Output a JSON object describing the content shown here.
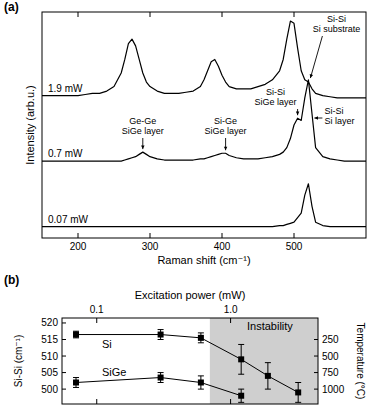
{
  "chart_data": [
    {
      "type": "line",
      "panel": "(a)",
      "xlabel": "Raman shift (cm⁻¹)",
      "ylabel": "Intensity (arb.u.)",
      "xlim": [
        150,
        600
      ],
      "xticks": [
        200,
        300,
        400,
        500
      ],
      "ylim": [
        0,
        100
      ],
      "tick_labels": "x",
      "grid": false,
      "line_style": "solid",
      "x": [
        150,
        160,
        170,
        180,
        190,
        200,
        210,
        220,
        230,
        240,
        250,
        260,
        265,
        270,
        275,
        280,
        285,
        290,
        295,
        300,
        310,
        320,
        330,
        340,
        350,
        360,
        370,
        375,
        380,
        385,
        390,
        395,
        400,
        405,
        410,
        420,
        430,
        440,
        450,
        460,
        470,
        480,
        485,
        490,
        495,
        500,
        505,
        510,
        515,
        520,
        525,
        530,
        540,
        550,
        560,
        570,
        580,
        590,
        600
      ],
      "series": [
        {
          "name": "1.9 mW",
          "color": "#000000",
          "values": [
            63,
            63,
            63,
            63,
            63,
            63,
            63.5,
            64,
            64,
            65,
            67,
            73,
            79,
            86,
            88,
            85,
            79,
            73,
            69,
            67,
            65,
            64,
            64,
            64,
            64.5,
            65,
            67,
            70,
            74,
            78,
            79,
            76,
            72,
            69,
            67,
            66,
            66,
            66,
            67,
            68,
            70,
            74,
            79,
            88,
            96,
            95,
            84,
            74,
            70,
            69,
            66,
            64,
            63,
            62.5,
            62,
            62,
            62,
            62,
            62
          ]
        },
        {
          "name": "0.7 mW",
          "color": "#000000",
          "values": [
            34,
            34,
            34,
            34,
            34,
            34,
            34,
            34,
            34,
            34,
            34,
            34,
            34.5,
            35,
            35.5,
            36,
            37,
            38,
            37,
            36,
            35,
            34.5,
            34.5,
            34.5,
            34.5,
            34.5,
            35,
            35,
            35.5,
            36,
            36.5,
            37,
            37.5,
            37.5,
            36.5,
            35.5,
            35,
            35,
            35,
            35.5,
            36,
            37,
            38,
            40,
            44,
            50,
            53,
            52,
            62,
            70,
            55,
            40,
            36,
            35,
            34.5,
            34,
            34,
            34,
            34
          ]
        },
        {
          "name": "0.07 mW",
          "color": "#000000",
          "values": [
            5,
            5,
            5,
            5,
            5,
            5,
            5,
            5,
            5,
            5,
            5,
            5,
            5,
            5,
            5,
            5,
            5,
            5,
            5,
            5,
            5,
            5,
            5,
            5,
            5,
            5,
            5,
            5,
            5,
            5,
            5,
            5,
            5,
            5,
            5,
            5,
            5,
            5,
            5,
            5,
            5,
            5.5,
            5.5,
            6,
            6.5,
            7,
            9,
            11,
            19,
            24,
            14,
            7,
            5.5,
            5,
            5,
            5,
            5,
            5,
            5
          ]
        }
      ],
      "annotations": [
        {
          "text": [
            "Ge-Ge",
            "SiGe layer"
          ],
          "x": 290
        },
        {
          "text": [
            "Si-Ge",
            "SiGe layer"
          ],
          "x": 405
        },
        {
          "text": [
            "Si-Si",
            "SiGe layer"
          ],
          "x": 505
        },
        {
          "text": [
            "Si-Si",
            "Si layer"
          ],
          "x": 520
        },
        {
          "text": [
            "Si-Si",
            "Si substrate"
          ],
          "x": 520
        }
      ]
    },
    {
      "type": "scatter",
      "panel": "(b)",
      "xlabel": "Excitation power (mW)",
      "ylabel": "Si-Si (cm⁻¹)",
      "y2label": "Temperature (°C)",
      "log": "x",
      "grid": false,
      "marker": "square",
      "line_style": "solid",
      "xlim": [
        0.055,
        4.5
      ],
      "xticks": [
        0.1,
        {
          "value": 1,
          "label": "1.0"
        }
      ],
      "ylim": [
        495.5,
        521.5
      ],
      "yticks": [
        500,
        505,
        510,
        515,
        520
      ],
      "y2lim": [
        1225,
        -75
      ],
      "y2ticks": [
        250,
        500,
        750,
        1000
      ],
      "x": [
        0.07,
        0.3,
        0.6,
        1.2,
        1.9,
        3.2
      ],
      "series": [
        {
          "name": "Si",
          "color": "#000000",
          "values": [
            516.5,
            516.5,
            515.5,
            509,
            504,
            499
          ],
          "errors": [
            1,
            1.5,
            1.5,
            4.5,
            4,
            3
          ]
        },
        {
          "name": "SiGe",
          "color": "#000000",
          "values": [
            502,
            503.5,
            502,
            498,
            null,
            null
          ],
          "errors": [
            1.5,
            1.5,
            2,
            2,
            null,
            null
          ]
        }
      ],
      "shade": {
        "from": 0.7,
        "to": 4.5,
        "label": "Instability"
      }
    }
  ]
}
